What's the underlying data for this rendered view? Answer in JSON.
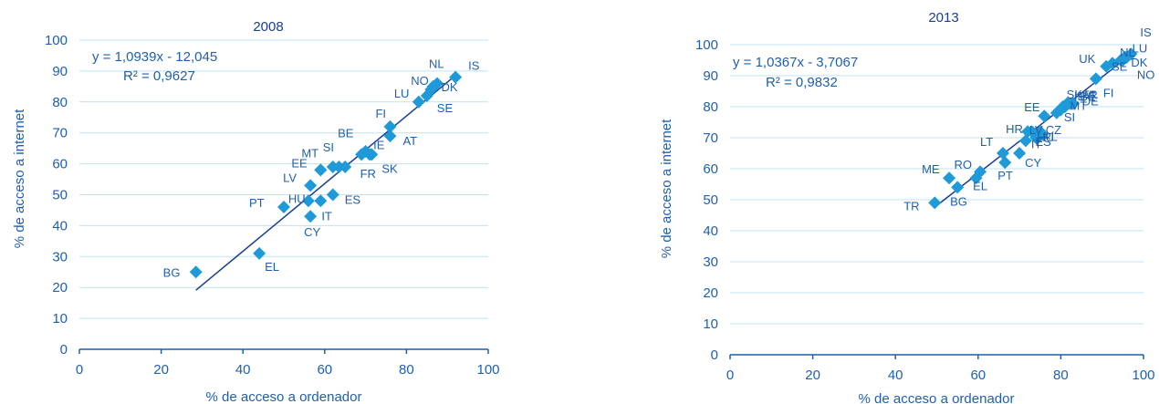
{
  "chart_data": [
    {
      "type": "scatter",
      "title": "2008",
      "xlabel": "% de acceso a ordenador",
      "ylabel": "% de acceso a internet",
      "xlim": [
        0,
        100
      ],
      "ylim": [
        0,
        100
      ],
      "x_ticks": [
        "0",
        "20",
        "40",
        "60",
        "80",
        "100"
      ],
      "y_ticks": [
        "0",
        "10",
        "20",
        "30",
        "40",
        "50",
        "60",
        "70",
        "80",
        "90",
        "100"
      ],
      "grid": true,
      "trendline": {
        "equation": "y = 1,0939x - 12,045",
        "r2": "R² = 0,9627",
        "slope": 1.0939,
        "intercept": -12.045,
        "x_range": [
          28.5,
          92
        ]
      },
      "points": [
        {
          "label": "BG",
          "x": 28.5,
          "y": 25,
          "label_dx": -36,
          "label_dy": 5
        },
        {
          "label": "EL",
          "x": 44,
          "y": 31,
          "label_dx": 6,
          "label_dy": 19
        },
        {
          "label": "PT",
          "x": 50,
          "y": 46,
          "label_dx": -38,
          "label_dy": 0
        },
        {
          "label": "HU",
          "x": 56,
          "y": 48,
          "label_dx": -22,
          "label_dy": 2
        },
        {
          "label": "CY",
          "x": 56.5,
          "y": 43,
          "label_dx": -7,
          "label_dy": 22
        },
        {
          "label": "LV",
          "x": 56.5,
          "y": 53,
          "label_dx": -30,
          "label_dy": -4
        },
        {
          "label": "IT",
          "x": 59,
          "y": 48,
          "label_dx": 1,
          "label_dy": 21
        },
        {
          "label": "EE",
          "x": 59,
          "y": 58,
          "label_dx": -32,
          "label_dy": -3
        },
        {
          "label": "MT",
          "x": 59,
          "y": 58,
          "label_dx": -21,
          "label_dy": -14
        },
        {
          "label": "SI",
          "x": 62,
          "y": 59,
          "label_dx": -11,
          "label_dy": -17
        },
        {
          "label": "ES",
          "x": 62,
          "y": 50,
          "label_dx": 13,
          "label_dy": 10
        },
        {
          "label": "",
          "x": 63.5,
          "y": 59,
          "label_dx": 0,
          "label_dy": 0
        },
        {
          "label": "",
          "x": 65,
          "y": 59,
          "label_dx": 0,
          "label_dy": 0
        },
        {
          "label": "BE",
          "x": 69,
          "y": 63,
          "label_dx": -26,
          "label_dy": -19
        },
        {
          "label": "FR",
          "x": 70,
          "y": 64,
          "label_dx": -6,
          "label_dy": 29
        },
        {
          "label": "IE",
          "x": 71,
          "y": 63,
          "label_dx": 4,
          "label_dy": -6
        },
        {
          "label": "SK",
          "x": 71.5,
          "y": 63,
          "label_dx": 11,
          "label_dy": 20
        },
        {
          "label": "FI",
          "x": 76,
          "y": 72,
          "label_dx": -16,
          "label_dy": -10
        },
        {
          "label": "AT",
          "x": 76,
          "y": 69,
          "label_dx": 14,
          "label_dy": 10
        },
        {
          "label": "LU",
          "x": 83,
          "y": 80,
          "label_dx": -27,
          "label_dy": -5
        },
        {
          "label": "SE",
          "x": 85,
          "y": 82,
          "label_dx": 11,
          "label_dy": 18
        },
        {
          "label": "NO",
          "x": 86,
          "y": 84,
          "label_dx": -22,
          "label_dy": -5
        },
        {
          "label": "DK",
          "x": 86.5,
          "y": 85,
          "label_dx": 9,
          "label_dy": 5
        },
        {
          "label": "NL",
          "x": 87.5,
          "y": 86,
          "label_dx": -9,
          "label_dy": -17
        },
        {
          "label": "IS",
          "x": 92,
          "y": 88,
          "label_dx": 14,
          "label_dy": -8
        }
      ]
    },
    {
      "type": "scatter",
      "title": "2013",
      "xlabel": "% de acceso a ordenador",
      "ylabel": "% de acceso a internet",
      "xlim": [
        0,
        100
      ],
      "ylim": [
        0,
        100
      ],
      "x_ticks": [
        "0",
        "20",
        "40",
        "60",
        "80",
        "100"
      ],
      "y_ticks": [
        "0",
        "10",
        "20",
        "30",
        "40",
        "50",
        "60",
        "70",
        "80",
        "90",
        "100"
      ],
      "grid": true,
      "trendline": {
        "equation": "y = 1,0367x - 3,7067",
        "r2": "R² = 0,9832",
        "slope": 1.0367,
        "intercept": -3.7067,
        "x_range": [
          49.5,
          97
        ]
      },
      "points": [
        {
          "label": "TR",
          "x": 49.5,
          "y": 49,
          "label_dx": -34,
          "label_dy": 8
        },
        {
          "label": "ME",
          "x": 53,
          "y": 57,
          "label_dx": -30,
          "label_dy": -5
        },
        {
          "label": "BG",
          "x": 55,
          "y": 54,
          "label_dx": -8,
          "label_dy": 20
        },
        {
          "label": "RO",
          "x": 59.5,
          "y": 57,
          "label_dx": -24,
          "label_dy": -10
        },
        {
          "label": "EL",
          "x": 60.5,
          "y": 59,
          "label_dx": -8,
          "label_dy": 20
        },
        {
          "label": "LT",
          "x": 66,
          "y": 65,
          "label_dx": -25,
          "label_dy": -8
        },
        {
          "label": "PT",
          "x": 66.5,
          "y": 62,
          "label_dx": -8,
          "label_dy": 19
        },
        {
          "label": "CY",
          "x": 70,
          "y": 65,
          "label_dx": 6,
          "label_dy": 15
        },
        {
          "label": "HR",
          "x": 72,
          "y": 72,
          "label_dx": -24,
          "label_dy": 2
        },
        {
          "label": "IT",
          "x": 71.5,
          "y": 69,
          "label_dx": 6,
          "label_dy": 8
        },
        {
          "label": "LV",
          "x": 73,
          "y": 72,
          "label_dx": -3,
          "label_dy": 3
        },
        {
          "label": "HU",
          "x": 74,
          "y": 70,
          "label_dx": 1,
          "label_dy": 4
        },
        {
          "label": "ES",
          "x": 74.5,
          "y": 70,
          "label_dx": -3,
          "label_dy": 9
        },
        {
          "label": "CZ",
          "x": 75,
          "y": 72,
          "label_dx": 6,
          "label_dy": 3
        },
        {
          "label": "PL",
          "x": 75.5,
          "y": 71,
          "label_dx": 1,
          "label_dy": 7
        },
        {
          "label": "EE",
          "x": 76,
          "y": 77,
          "label_dx": -22,
          "label_dy": -5
        },
        {
          "label": "SI",
          "x": 79,
          "y": 78,
          "label_dx": 8,
          "label_dy": 9
        },
        {
          "label": "MT",
          "x": 80,
          "y": 79,
          "label_dx": 10,
          "label_dy": 0
        },
        {
          "label": "SK",
          "x": 80.5,
          "y": 80,
          "label_dx": 4,
          "label_dy": -9
        },
        {
          "label": "IE",
          "x": 81,
          "y": 80,
          "label_dx": 10,
          "label_dy": -7
        },
        {
          "label": "BE",
          "x": 81.5,
          "y": 81,
          "label_dx": 14,
          "label_dy": -3
        },
        {
          "label": "FR",
          "x": 82,
          "y": 81,
          "label_dx": 14,
          "label_dy": -5
        },
        {
          "label": "DE",
          "x": 82.5,
          "y": 81,
          "label_dx": 12,
          "label_dy": 2
        },
        {
          "label": "AT",
          "x": 83,
          "y": 81,
          "label_dx": 10,
          "label_dy": -4
        },
        {
          "label": "FI",
          "x": 88.5,
          "y": 89,
          "label_dx": 8,
          "label_dy": 20
        },
        {
          "label": "UK",
          "x": 91,
          "y": 93,
          "label_dx": -30,
          "label_dy": -4
        },
        {
          "label": "SE",
          "x": 92.5,
          "y": 94,
          "label_dx": -1,
          "label_dy": 8
        },
        {
          "label": "NL",
          "x": 94.5,
          "y": 95,
          "label_dx": -1,
          "label_dy": -4
        },
        {
          "label": "DK",
          "x": 95,
          "y": 95,
          "label_dx": 9,
          "label_dy": 7
        },
        {
          "label": "LU",
          "x": 95.5,
          "y": 96,
          "label_dx": 8,
          "label_dy": -5
        },
        {
          "label": "NO",
          "x": 96,
          "y": 96,
          "label_dx": 11,
          "label_dy": 24
        },
        {
          "label": "IS",
          "x": 97,
          "y": 97,
          "label_dx": 10,
          "label_dy": -19
        }
      ]
    }
  ]
}
